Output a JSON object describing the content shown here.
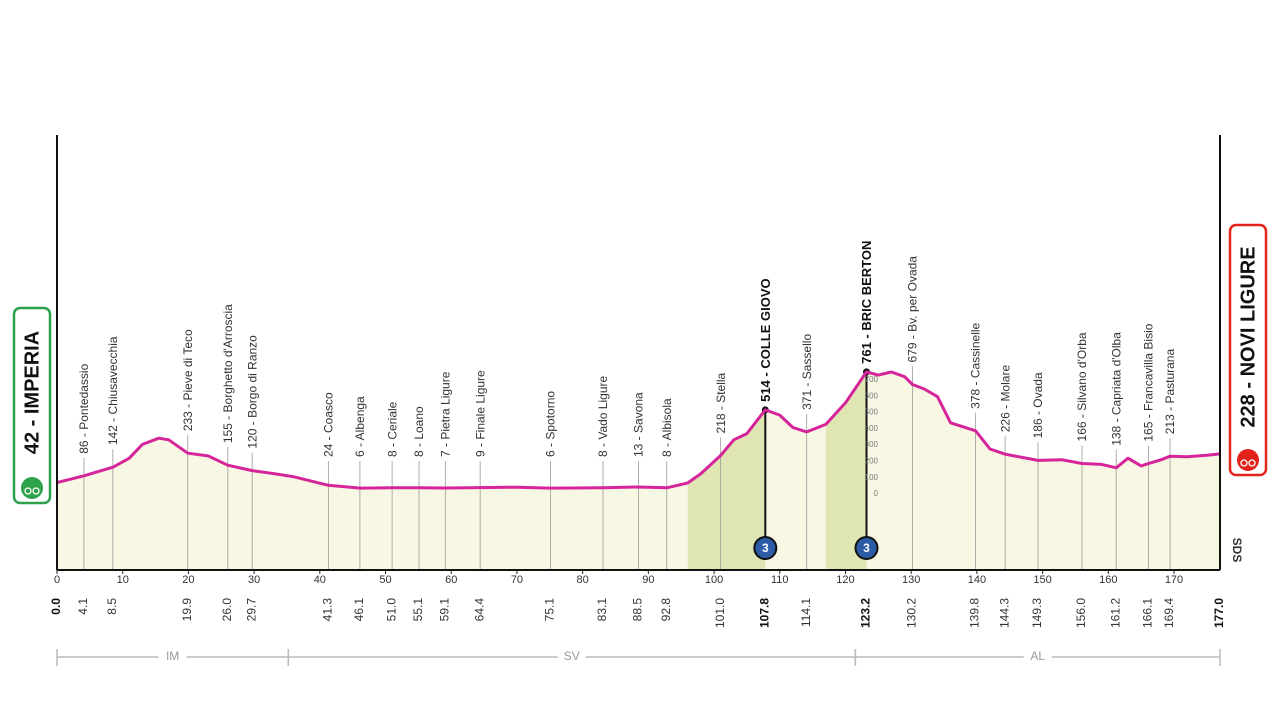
{
  "chart_data": {
    "type": "elevation-profile",
    "x": [
      0,
      4.1,
      8.5,
      11,
      13,
      15.5,
      17,
      19.9,
      23,
      26,
      29.7,
      33,
      36,
      41.3,
      46.1,
      51,
      55.1,
      59.1,
      64.4,
      70,
      75.1,
      83.1,
      88.5,
      92.8,
      96,
      98,
      101,
      103,
      105,
      107.8,
      110,
      112,
      114.1,
      117,
      120,
      123.2,
      125,
      127,
      129,
      130.2,
      132,
      134,
      136,
      139.8,
      142,
      144.3,
      149.3,
      153,
      156,
      159,
      161.2,
      163,
      165,
      166.1,
      168,
      169.4,
      172,
      175,
      177
    ],
    "values": [
      42,
      86,
      142,
      200,
      290,
      330,
      320,
      233,
      215,
      155,
      120,
      100,
      80,
      24,
      6,
      8,
      8,
      7,
      9,
      12,
      6,
      8,
      13,
      8,
      40,
      100,
      218,
      320,
      360,
      514,
      480,
      400,
      371,
      420,
      560,
      761,
      740,
      760,
      730,
      679,
      650,
      600,
      430,
      378,
      260,
      226,
      186,
      190,
      166,
      160,
      138,
      200,
      150,
      165,
      190,
      213,
      210,
      220,
      228
    ],
    "color": "#d6249a",
    "area_color": "#f7f7e4",
    "climb_color": "#dfe6b4",
    "xlim": [
      0,
      177
    ],
    "ylim": [
      -526,
      2300
    ],
    "xticks": [
      0,
      10,
      20,
      30,
      40,
      50,
      60,
      70,
      80,
      90,
      100,
      110,
      120,
      130,
      140,
      150,
      160,
      170
    ],
    "start": {
      "label": "42 - IMPERIA",
      "km": {
        "value": 0,
        "label": "0.0"
      },
      "color": "#2ca24b"
    },
    "finish": {
      "label": "228 - NOVI LIGURE",
      "km": {
        "value": 177,
        "label": "177.0"
      },
      "color": "#e2231a"
    },
    "waypoints": [
      {
        "label": "86 - Pontedassio",
        "km": 4.1
      },
      {
        "label": "142 - Chiusavecchia",
        "km": 8.5
      },
      {
        "label": "233 - Pieve di Teco",
        "km": 19.9
      },
      {
        "label": "155 - Borghetto d'Arroscia",
        "km": {
          "value": 26,
          "label": "26.0"
        }
      },
      {
        "label": "120 - Borgo di Ranzo",
        "km": 29.7
      },
      {
        "label": "24 - Coasco",
        "km": 41.3
      },
      {
        "label": "6 - Albenga",
        "km": 46.1
      },
      {
        "label": "8 - Ceriale",
        "km": {
          "value": 51,
          "label": "51.0"
        }
      },
      {
        "label": "8 - Loano",
        "km": 55.1
      },
      {
        "label": "7 - Pietra Ligure",
        "km": 59.1
      },
      {
        "label": "9 - Finale Ligure",
        "km": 64.4
      },
      {
        "label": "6 - Spotorno",
        "km": 75.1
      },
      {
        "label": "8 - Vado Ligure",
        "km": 83.1
      },
      {
        "label": "13 - Savona",
        "km": 88.5
      },
      {
        "label": "8 - Albisola",
        "km": 92.8
      },
      {
        "label": "218 - Stella",
        "km": {
          "value": 101,
          "label": "101.0"
        }
      },
      {
        "label": "514 - COLLE GIOVO",
        "km": 107.8,
        "climb": true,
        "category": 3
      },
      {
        "label": "371 - Sassello",
        "km": 114.1
      },
      {
        "label": "761 - BRIC BERTON",
        "km": 123.2,
        "climb": true,
        "category": 3
      },
      {
        "label": "679 - Bv. per Ovada",
        "km": 130.2
      },
      {
        "label": "378 - Cassinelle",
        "km": 139.8
      },
      {
        "label": "226 - Molare",
        "km": 144.3
      },
      {
        "label": "186 - Ovada",
        "km": 149.3
      },
      {
        "label": "166 - Silvano d'Orba",
        "km": {
          "value": 156,
          "label": "156.0"
        }
      },
      {
        "label": "138 - Capriata d'Olba",
        "km": 161.2
      },
      {
        "label": "165 - Francavilla Bisio",
        "km": 166.1
      },
      {
        "label": "213 - Pasturana",
        "km": 169.4
      }
    ],
    "climb_zones": [
      {
        "from": 96,
        "to": 107.8
      },
      {
        "from": 117,
        "to": 123.2
      }
    ],
    "climb_scale_ticks": [
      0,
      100,
      200,
      300,
      400,
      500,
      600,
      700
    ],
    "regions": [
      {
        "name": "IM",
        "from": 0,
        "to": 35.2
      },
      {
        "name": "SV",
        "from": 35.2,
        "to": 121.5
      },
      {
        "name": "AL",
        "from": 121.5,
        "to": 177
      }
    ],
    "logo": "SDS"
  }
}
